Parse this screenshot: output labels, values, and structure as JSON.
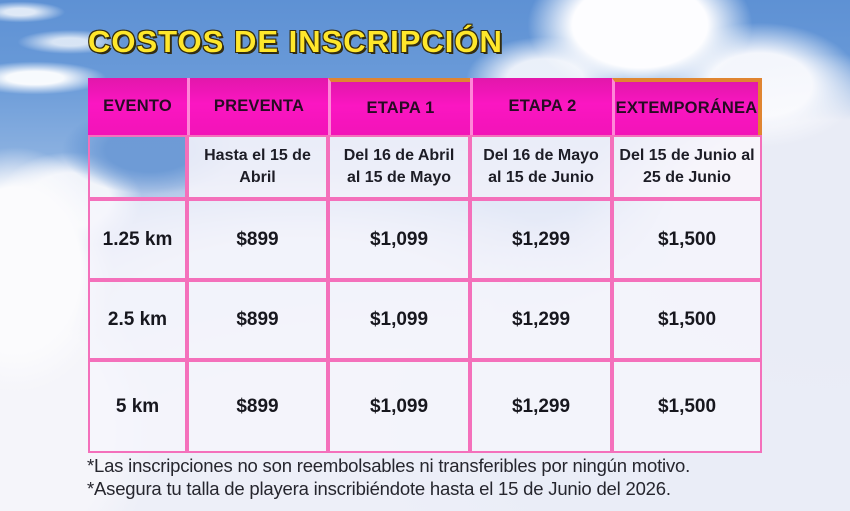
{
  "title": "COSTOS DE INSCRIPCIÓN",
  "table": {
    "headers": [
      "EVENTO",
      "PREVENTA",
      "ETAPA 1",
      "ETAPA 2",
      "EXTEMPORÁNEA"
    ],
    "periods": [
      {
        "line1": "",
        "line2": ""
      },
      {
        "line1": "Hasta el 15 de",
        "line2": "Abril"
      },
      {
        "line1": "Del 16 de Abril",
        "line2": "al 15 de Mayo"
      },
      {
        "line1": "Del 16 de Mayo",
        "line2": "al 15 de Junio"
      },
      {
        "line1": "Del 15 de Junio al",
        "line2": "25 de Junio"
      }
    ],
    "rows": [
      {
        "event": "1.25 km",
        "preventa": "$899",
        "etapa1": "$1,099",
        "etapa2": "$1,299",
        "extemporanea": "$1,500"
      },
      {
        "event": "2.5 km",
        "preventa": "$899",
        "etapa1": "$1,099",
        "etapa2": "$1,299",
        "extemporanea": "$1,500"
      },
      {
        "event": "5 km",
        "preventa": "$899",
        "etapa1": "$1,099",
        "etapa2": "$1,299",
        "extemporanea": "$1,500"
      }
    ]
  },
  "notes": [
    "*Las inscripciones no son reembolsables ni transferibles por ningún motivo.",
    "*Asegura tu talla de playera inscribiéndote hasta el 15 de Junio del 2026."
  ],
  "colors": {
    "header_magenta": "#f213b8",
    "grid_pink": "#f470bb",
    "accent_orange": "#e08531",
    "title_yellow": "#ffe72b",
    "sky_blue": "#5e91d4"
  }
}
